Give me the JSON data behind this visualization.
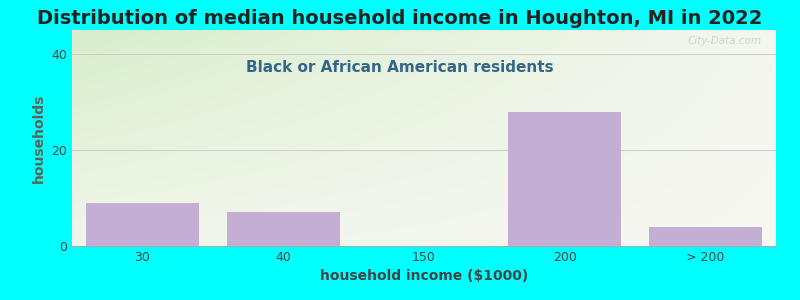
{
  "title": "Distribution of median household income in Houghton, MI in 2022",
  "subtitle": "Black or African American residents",
  "xlabel": "household income ($1000)",
  "ylabel": "households",
  "background_color": "#00FFFF",
  "plot_bg_color_topleft": "#d8eecc",
  "plot_bg_color_right": "#f5f5f0",
  "plot_bg_color_bottom": "#ffffff",
  "bar_color": "#c4aed4",
  "bar_edge_color": "none",
  "categories": [
    "30",
    "40",
    "150",
    "200",
    "> 200"
  ],
  "values": [
    9,
    7,
    0,
    28,
    4
  ],
  "ylim": [
    0,
    45
  ],
  "yticks": [
    0,
    20,
    40
  ],
  "grid_color": "#cccccc",
  "title_fontsize": 14,
  "subtitle_fontsize": 11,
  "axis_label_fontsize": 10,
  "tick_fontsize": 9,
  "watermark": "City-Data.com",
  "title_color": "#222222",
  "subtitle_color": "#336688",
  "ylabel_color": "#556655",
  "xlabel_color": "#444444"
}
